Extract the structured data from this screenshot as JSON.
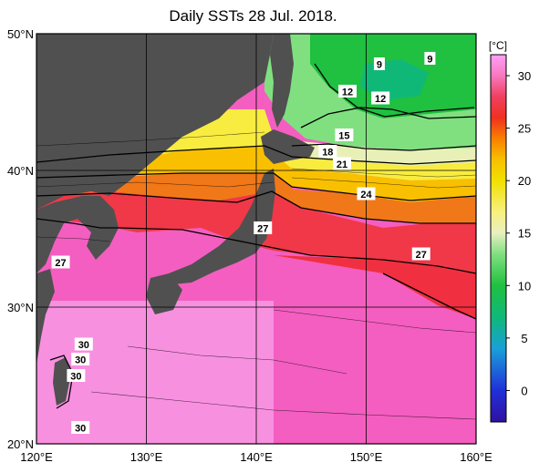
{
  "title": "Daily SSTs 28 Jul. 2018.",
  "x_axis": {
    "ticks": [
      {
        "value": 120,
        "label": "120°E"
      },
      {
        "value": 130,
        "label": "130°E"
      },
      {
        "value": 140,
        "label": "140°E"
      },
      {
        "value": 150,
        "label": "150°E"
      },
      {
        "value": 160,
        "label": "160°E"
      }
    ],
    "range": [
      120,
      160
    ]
  },
  "y_axis": {
    "ticks": [
      {
        "value": 50,
        "label": "50°N"
      },
      {
        "value": 40,
        "label": "40°N"
      },
      {
        "value": 30,
        "label": "30°N"
      },
      {
        "value": 20,
        "label": "20°N"
      }
    ],
    "range": [
      20,
      50
    ]
  },
  "colorbar": {
    "unit": "[°C]",
    "range": [
      -3,
      32
    ],
    "ticks": [
      {
        "value": 0,
        "label": "0"
      },
      {
        "value": 5,
        "label": "5"
      },
      {
        "value": 10,
        "label": "10"
      },
      {
        "value": 15,
        "label": "15"
      },
      {
        "value": 20,
        "label": "20"
      },
      {
        "value": 25,
        "label": "25"
      },
      {
        "value": 30,
        "label": "30"
      }
    ],
    "stops": [
      {
        "t": -3,
        "color": "#3010a0"
      },
      {
        "t": 0,
        "color": "#2030d8"
      },
      {
        "t": 4,
        "color": "#1aa0d8"
      },
      {
        "t": 7,
        "color": "#10b878"
      },
      {
        "t": 10,
        "color": "#20c040"
      },
      {
        "t": 13,
        "color": "#80e080"
      },
      {
        "t": 15,
        "color": "#e8f0c0"
      },
      {
        "t": 17,
        "color": "#f8f080"
      },
      {
        "t": 20,
        "color": "#f0e000"
      },
      {
        "t": 22,
        "color": "#f8c000"
      },
      {
        "t": 24,
        "color": "#f88000"
      },
      {
        "t": 26,
        "color": "#f03020"
      },
      {
        "t": 28,
        "color": "#f04060"
      },
      {
        "t": 30,
        "color": "#f878c0"
      },
      {
        "t": 32,
        "color": "#ffa0f8"
      }
    ]
  },
  "contour_labels": [
    {
      "text": "9",
      "lon": 151.2,
      "lat": 47.8
    },
    {
      "text": "9",
      "lon": 155.8,
      "lat": 48.2
    },
    {
      "text": "12",
      "lon": 148.3,
      "lat": 45.8
    },
    {
      "text": "12",
      "lon": 151.3,
      "lat": 45.3
    },
    {
      "text": "15",
      "lon": 148.0,
      "lat": 42.6
    },
    {
      "text": "18",
      "lon": 146.5,
      "lat": 41.4
    },
    {
      "text": "21",
      "lon": 147.8,
      "lat": 40.5
    },
    {
      "text": "24",
      "lon": 150.0,
      "lat": 38.3
    },
    {
      "text": "27",
      "lon": 140.6,
      "lat": 35.8
    },
    {
      "text": "27",
      "lon": 155.0,
      "lat": 33.9
    },
    {
      "text": "27",
      "lon": 122.2,
      "lat": 33.3
    },
    {
      "text": "30",
      "lon": 124.3,
      "lat": 27.3
    },
    {
      "text": "30",
      "lon": 124.0,
      "lat": 26.2
    },
    {
      "text": "30",
      "lon": 123.6,
      "lat": 25.0
    },
    {
      "text": "30",
      "lon": 124.0,
      "lat": 21.2
    }
  ],
  "colors": {
    "land": "#505050",
    "grid": "#000000",
    "contour": "#000000"
  }
}
